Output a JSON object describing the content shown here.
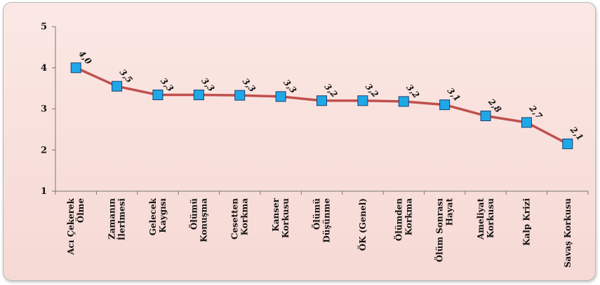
{
  "chart_data": {
    "type": "line",
    "title": "",
    "xlabel": "",
    "ylabel": "",
    "ylim": [
      1,
      5
    ],
    "yticks": [
      "1",
      "2",
      "3",
      "4",
      "5"
    ],
    "grid": false,
    "legend": "none",
    "categories": [
      [
        "Acı Çekerek",
        "Ölme"
      ],
      [
        "Zamanın",
        "İlerlmesi"
      ],
      [
        "Gelecek",
        "Kaygısı"
      ],
      [
        "Ölümü",
        "Konuşma"
      ],
      [
        "Cesetten",
        "Korkma"
      ],
      [
        "Kanser",
        "Korkusu"
      ],
      [
        "Ölümü",
        "Düşünme"
      ],
      [
        "ÖK (Genel)"
      ],
      [
        "Ölümden",
        "Korkma"
      ],
      [
        "Ölüm Sonrası",
        "Hayat"
      ],
      [
        "Ameliyat",
        "Korkusu"
      ],
      [
        "Kalp Krizi"
      ],
      [
        "Savaş Korkusu"
      ]
    ],
    "series": [
      {
        "values": [
          4.0,
          3.55,
          3.34,
          3.34,
          3.33,
          3.3,
          3.2,
          3.2,
          3.18,
          3.1,
          2.83,
          2.67,
          2.15
        ],
        "labels": [
          "4,0",
          "3,5",
          "3,3",
          "3,3",
          "3,3",
          "3,3",
          "3,2",
          "3,2",
          "3,2",
          "3,1",
          "2,8",
          "2,7",
          "2,1"
        ],
        "line_color": "#c0504d",
        "marker_color": "#1fa8e8"
      }
    ]
  }
}
